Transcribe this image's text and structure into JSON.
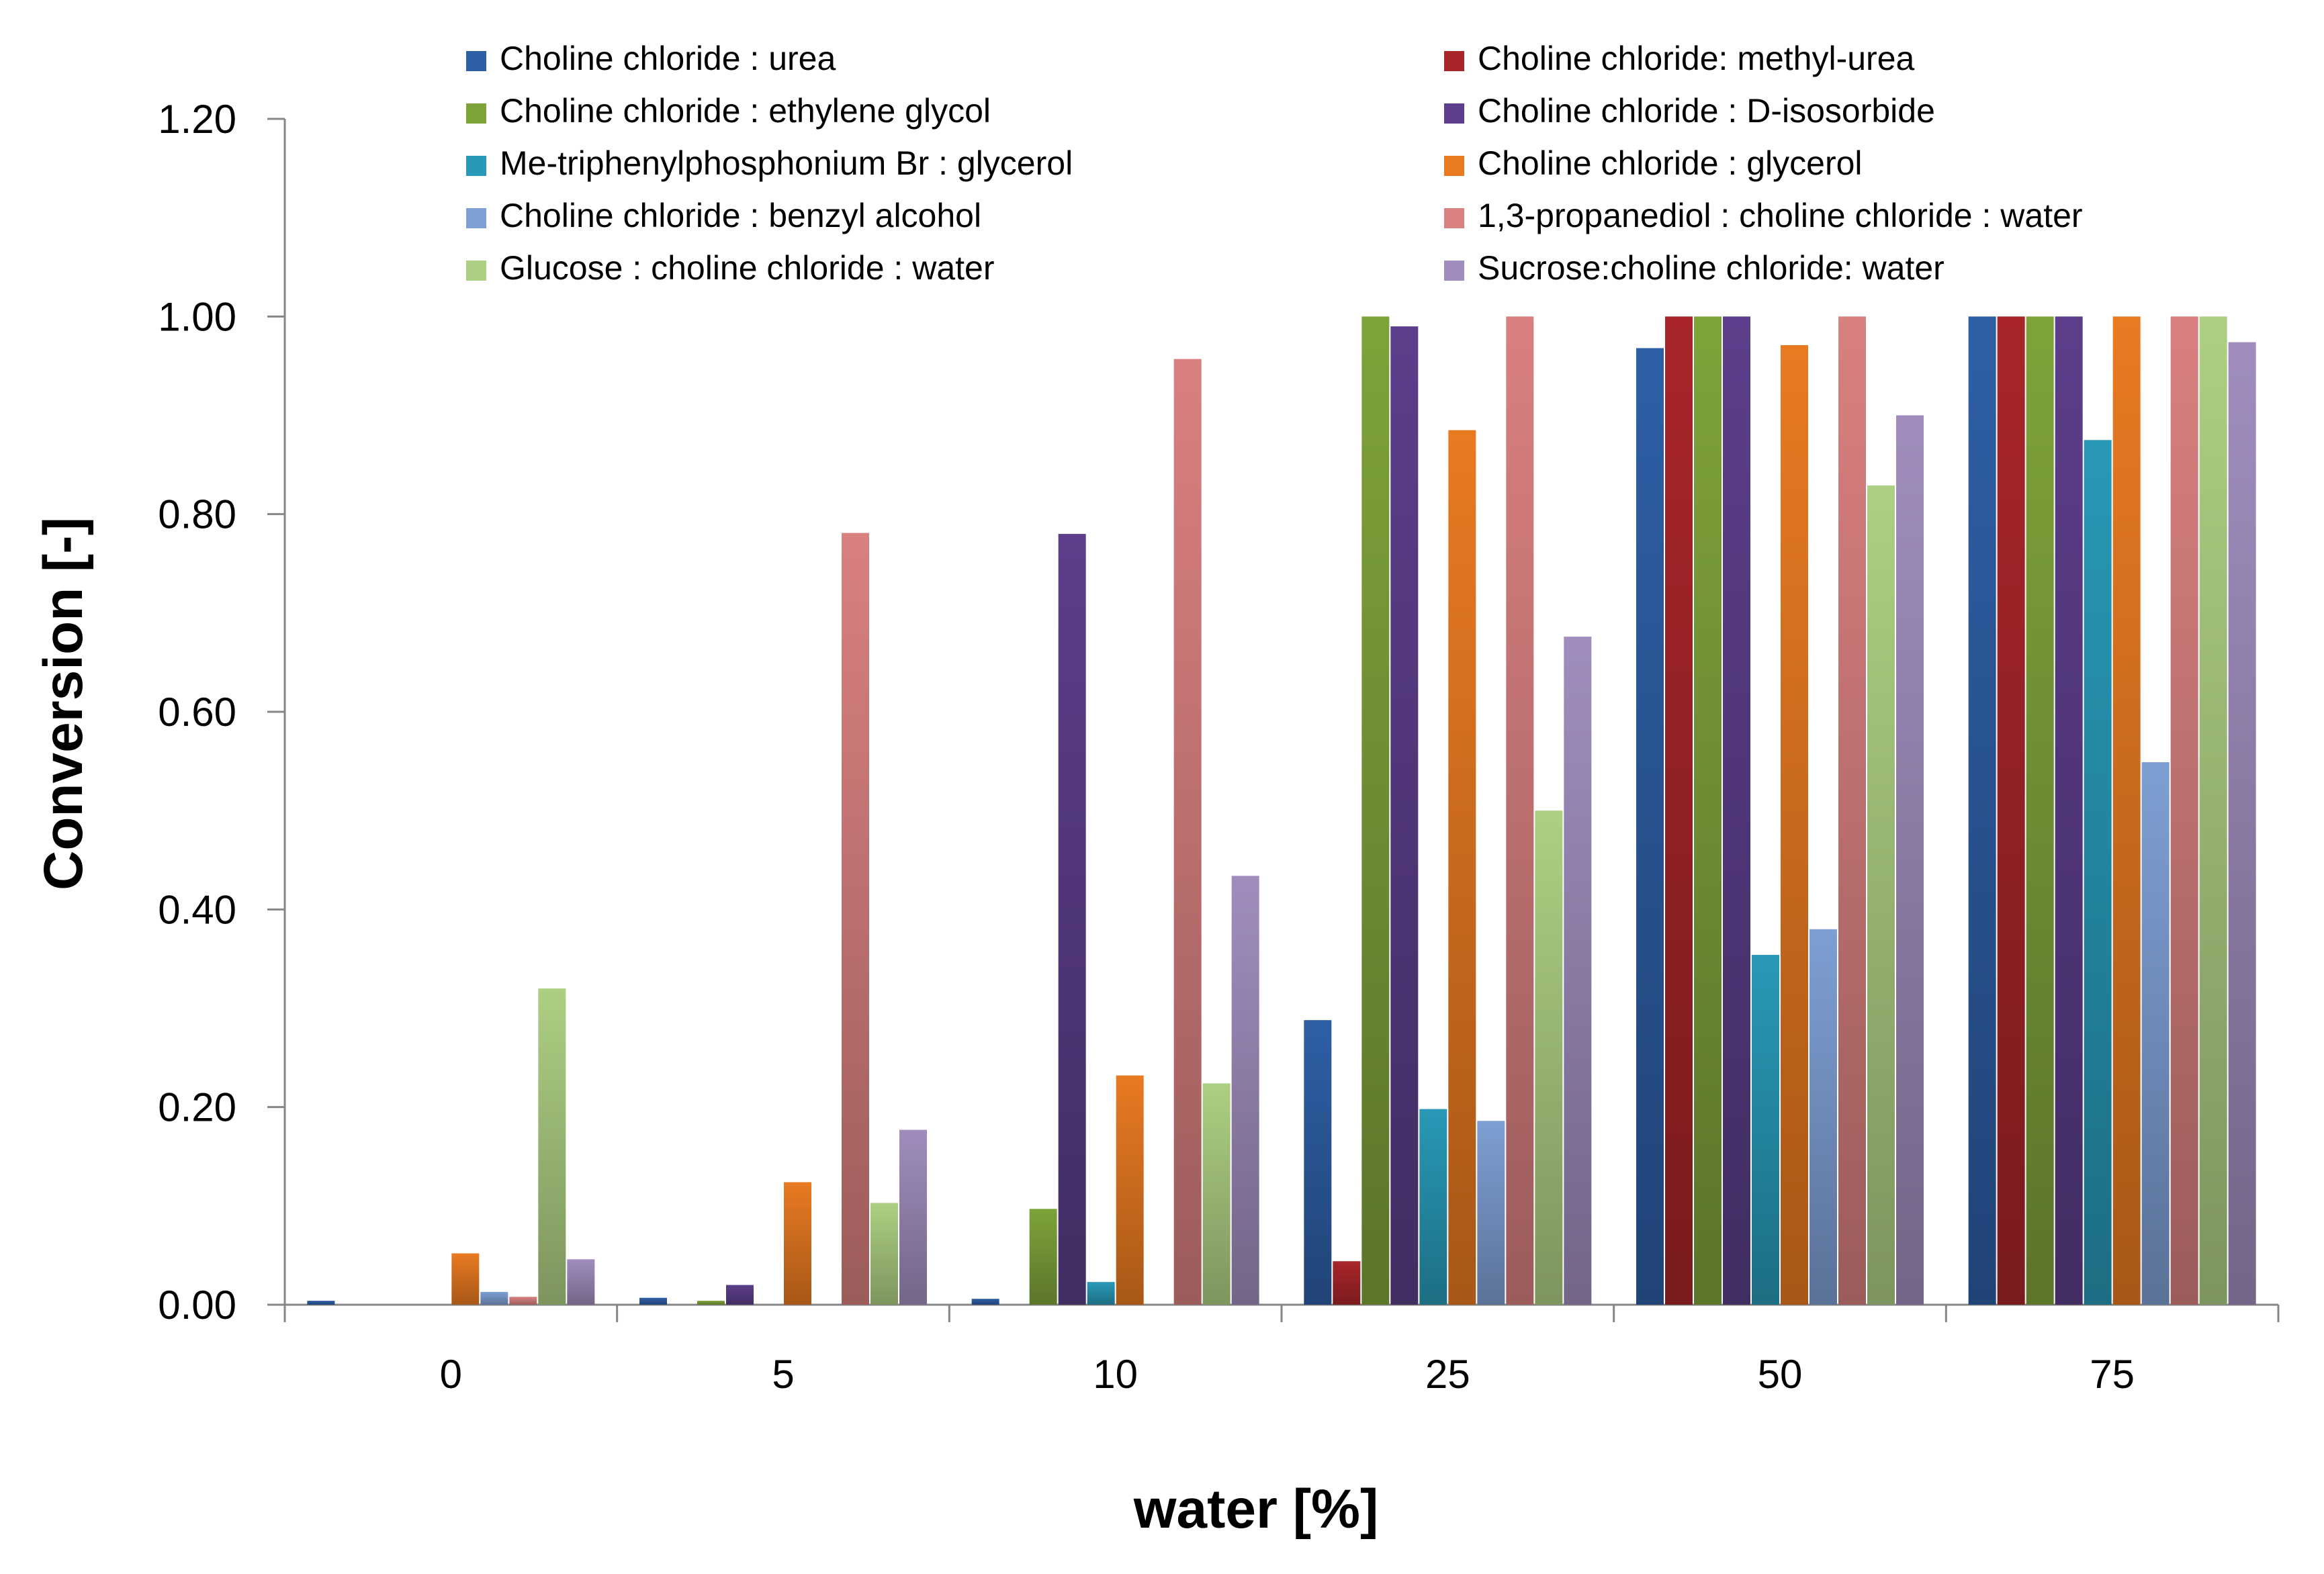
{
  "chart_data": {
    "type": "bar",
    "title": "",
    "xlabel": "water [%]",
    "ylabel": "Conversion [-]",
    "ylim": [
      0,
      1.2
    ],
    "yticks": [
      "0.00",
      "0.20",
      "0.40",
      "0.60",
      "0.80",
      "1.00",
      "1.20"
    ],
    "categories": [
      "0",
      "5",
      "10",
      "25",
      "50",
      "75"
    ],
    "legend_position": "top",
    "series": [
      {
        "name": "Choline chloride : urea",
        "color": "#2E5FA5",
        "values": [
          0.004,
          0.007,
          0.006,
          0.288,
          0.968,
          1.0
        ]
      },
      {
        "name": "Choline chloride: methyl-urea",
        "color": "#A8262A",
        "values": [
          0,
          0,
          0,
          0.044,
          1.0,
          1.0
        ]
      },
      {
        "name": "Choline chloride : ethylene glycol",
        "color": "#7EA33A",
        "values": [
          0,
          0.004,
          0.097,
          1.0,
          1.0,
          1.0
        ]
      },
      {
        "name": "Choline chloride : D-isosorbide",
        "color": "#5C3E8A",
        "values": [
          0,
          0.02,
          0.78,
          0.99,
          1.0,
          1.0
        ]
      },
      {
        "name": "Me-triphenylphosphonium Br : glycerol",
        "color": "#2899B6",
        "values": [
          0,
          0,
          0.023,
          0.198,
          0.354,
          0.875
        ]
      },
      {
        "name": "Choline chloride : glycerol",
        "color": "#E87A22",
        "values": [
          0.052,
          0.124,
          0.232,
          0.885,
          0.971,
          1.0
        ]
      },
      {
        "name": "Choline chloride : benzyl alcohol",
        "color": "#7E9FD3",
        "values": [
          0.013,
          0,
          0,
          0.186,
          0.38,
          0.549
        ]
      },
      {
        "name": "1,3-propanediol : choline chloride : water",
        "color": "#D98080",
        "values": [
          0.008,
          0.781,
          0.957,
          1.0,
          1.0,
          1.0
        ]
      },
      {
        "name": "Glucose : choline chloride : water",
        "color": "#ADCF83",
        "values": [
          0.32,
          0.103,
          0.224,
          0.5,
          0.829,
          1.0
        ]
      },
      {
        "name": "Sucrose:choline chloride: water",
        "color": "#A08DBD",
        "values": [
          0.046,
          0.177,
          0.434,
          0.676,
          0.9,
          0.974
        ]
      }
    ]
  }
}
